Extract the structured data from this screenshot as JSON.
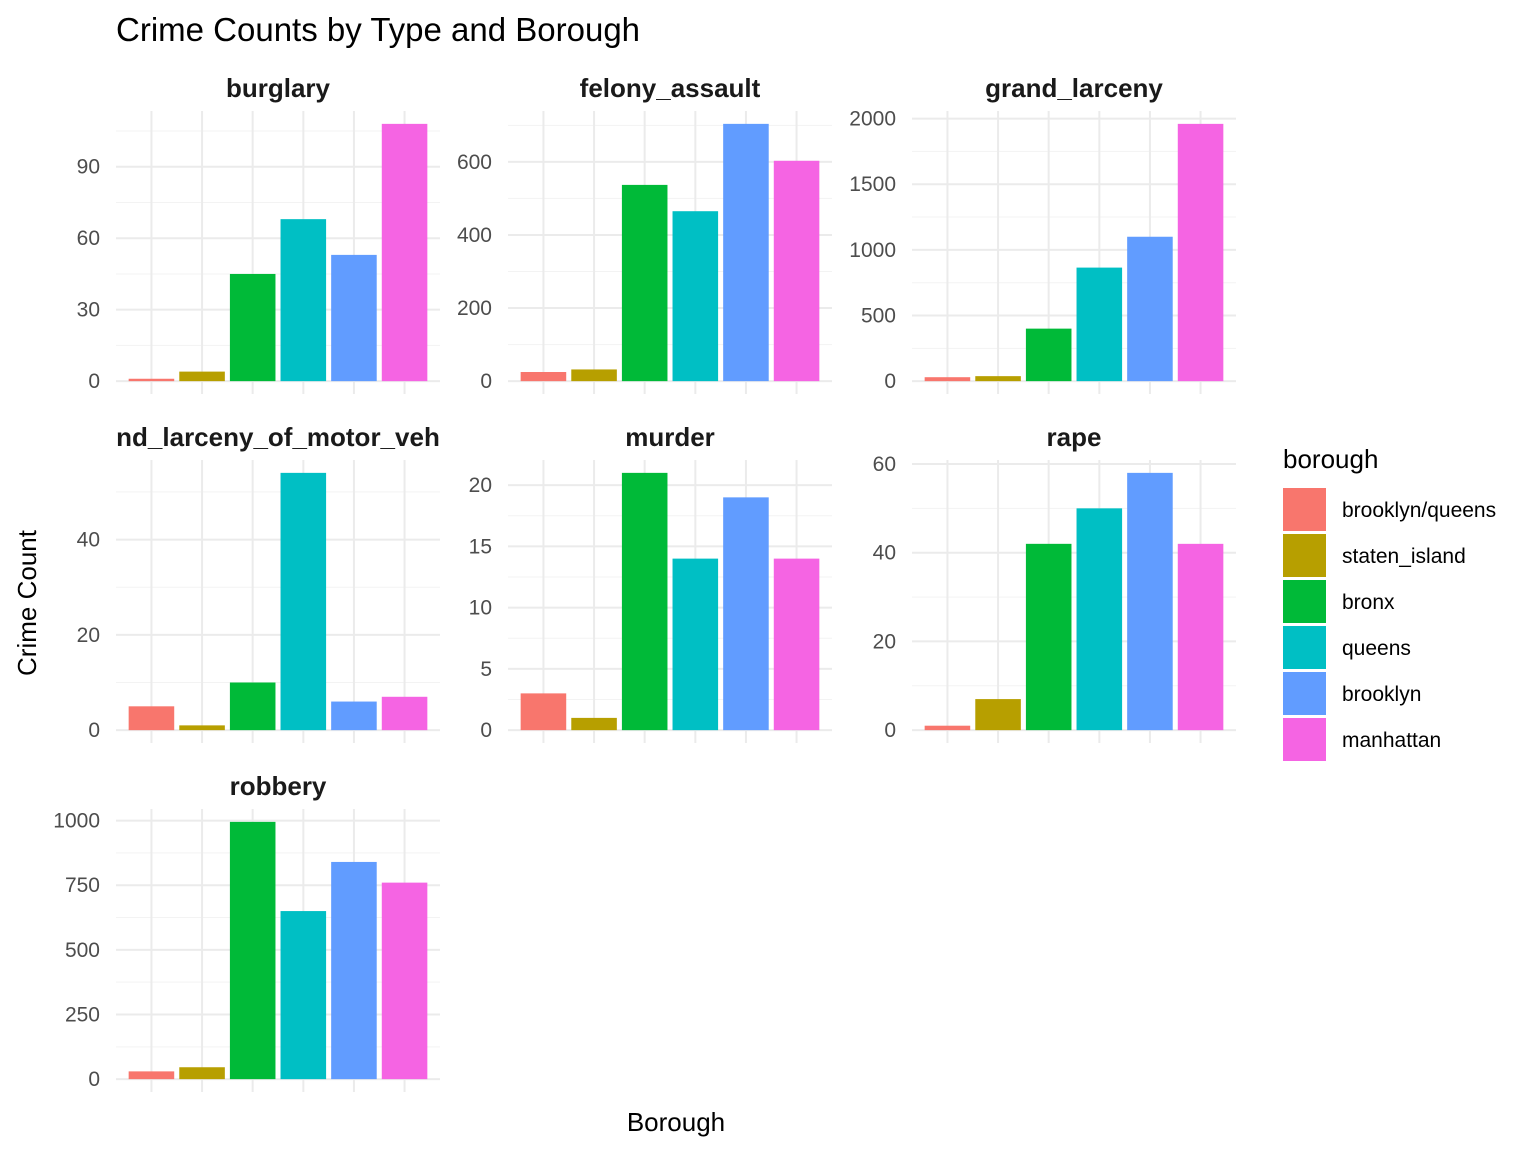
{
  "chart_data": {
    "type": "bar",
    "title": "Crime Counts by Type and Borough",
    "xlabel": "Borough",
    "ylabel": "Crime Count",
    "legend": {
      "title": "borough",
      "position": "right",
      "entries": [
        {
          "name": "brooklyn/queens",
          "color": "#F8766D"
        },
        {
          "name": "staten_island",
          "color": "#B79F00"
        },
        {
          "name": "bronx",
          "color": "#00BA38"
        },
        {
          "name": "queens",
          "color": "#00BFC4"
        },
        {
          "name": "brooklyn",
          "color": "#619CFF"
        },
        {
          "name": "manhattan",
          "color": "#F564E3"
        }
      ]
    },
    "categories": [
      "brooklyn/queens",
      "staten_island",
      "bronx",
      "queens",
      "brooklyn",
      "manhattan"
    ],
    "grid": true,
    "facets": [
      {
        "name": "burglary",
        "label": "burglary",
        "values": [
          1,
          4,
          45,
          68,
          53,
          108
        ],
        "ylim": [
          -5.4,
          113.4
        ],
        "ticks": [
          0,
          30,
          60,
          90
        ]
      },
      {
        "name": "felony_assault",
        "label": "felony_assault",
        "values": [
          25,
          32,
          537,
          465,
          704,
          603
        ],
        "ylim": [
          -35.2,
          739.2
        ],
        "ticks": [
          0,
          200,
          400,
          600
        ]
      },
      {
        "name": "grand_larceny",
        "label": "grand_larceny",
        "values": [
          30,
          38,
          400,
          865,
          1100,
          1960
        ],
        "ylim": [
          -98,
          2058
        ],
        "ticks": [
          0,
          500,
          1000,
          1500,
          2000
        ]
      },
      {
        "name": "grand_larceny_of_motor_vehicle",
        "label": "nd_larceny_of_motor_veh",
        "values": [
          5,
          1,
          10,
          54,
          6,
          7
        ],
        "ylim": [
          -2.7,
          56.7
        ],
        "ticks": [
          0,
          20,
          40
        ]
      },
      {
        "name": "murder",
        "label": "murder",
        "values": [
          3,
          1,
          21,
          14,
          19,
          14
        ],
        "ylim": [
          -1.05,
          22.05
        ],
        "ticks": [
          0,
          5,
          10,
          15,
          20
        ]
      },
      {
        "name": "rape",
        "label": "rape",
        "values": [
          1,
          7,
          42,
          50,
          58,
          42
        ],
        "ylim": [
          -2.9,
          60.9
        ],
        "ticks": [
          0,
          20,
          40,
          60
        ]
      },
      {
        "name": "robbery",
        "label": "robbery",
        "values": [
          30,
          46,
          995,
          650,
          840,
          760
        ],
        "ylim": [
          -49.75,
          1044.75
        ],
        "ticks": [
          0,
          250,
          500,
          750,
          1000
        ]
      }
    ]
  }
}
